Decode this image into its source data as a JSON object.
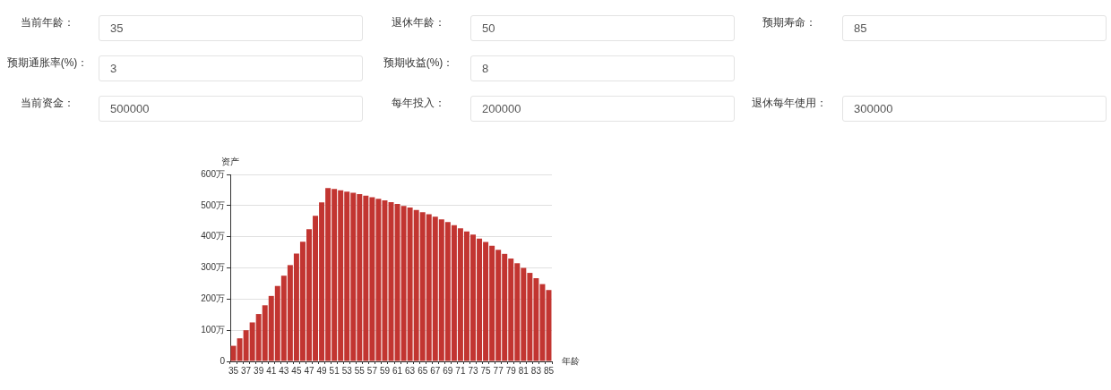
{
  "chart_data": {
    "type": "bar",
    "annotations": [
      "当前年龄：",
      "35",
      "退休年龄：",
      "50",
      "预期寿命：",
      "85",
      "预期通胀率(%)：",
      "3",
      "预期收益(%)：",
      "8",
      "当前资金：",
      "500000",
      "每年投入：",
      "200000",
      "退休每年使用：",
      "300000"
    ],
    "xlabel": "年龄",
    "ylabel": "资产",
    "categories": [
      "35",
      null,
      "37",
      null,
      "39",
      null,
      "41",
      null,
      "43",
      null,
      "45",
      null,
      "47",
      null,
      "49",
      null,
      "51",
      null,
      "53",
      null,
      "55",
      null,
      "57",
      null,
      "59",
      null,
      "61",
      null,
      "63",
      null,
      "65",
      null,
      "67",
      null,
      "69",
      null,
      "71",
      null,
      "73",
      null,
      "75",
      null,
      "77",
      null,
      "79",
      null,
      "81",
      null,
      "83",
      null,
      "85"
    ],
    "values": [
      50,
      74,
      100,
      125,
      152,
      180,
      210,
      242,
      275,
      309,
      346,
      384,
      424,
      467,
      510,
      556,
      553,
      549,
      545,
      541,
      537,
      532,
      527,
      522,
      517,
      511,
      505,
      499,
      494,
      486,
      479,
      472,
      464,
      456,
      447,
      437,
      427,
      417,
      407,
      394,
      383,
      371,
      358,
      345,
      330,
      315,
      300,
      284,
      267,
      248,
      229
    ],
    "color": "#c23531",
    "ylim": [
      0,
      600
    ],
    "yticks": [
      0,
      {
        "value": 100,
        "label": "100万"
      },
      {
        "value": 200,
        "label": "200万"
      },
      {
        "value": 300,
        "label": "300万"
      },
      {
        "value": 400,
        "label": "400万"
      },
      {
        "value": 500,
        "label": "500万"
      },
      {
        "value": 600,
        "label": "600万"
      }
    ],
    "grid": "y"
  }
}
